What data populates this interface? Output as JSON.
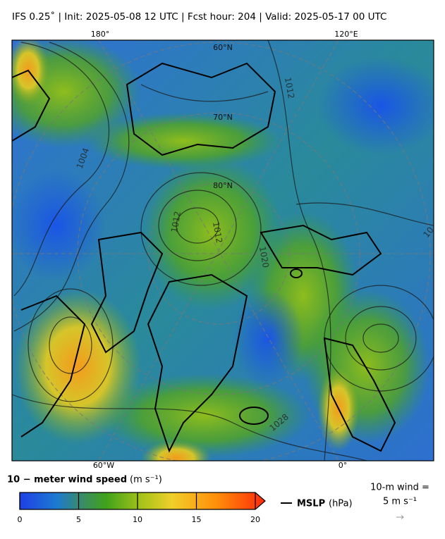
{
  "title": "IFS 0.25˚  |  Init: 2025-05-08 12 UTC  |  Fcst hour: 204  |  Valid: 2025-05-17 00 UTC",
  "map": {
    "lon_labels": [
      "180°",
      "120°E",
      "60°W",
      "0°"
    ],
    "lat_labels": [
      "60°N",
      "70°N",
      "80°N"
    ],
    "contour_labels": [
      "1004",
      "1012",
      "1012",
      "1012",
      "1020",
      "1028",
      "10"
    ]
  },
  "colorbar": {
    "label": "10 − meter wind speed",
    "unit": "(m s⁻¹)",
    "lim": [
      0,
      20
    ],
    "ticks": [
      0,
      5,
      10,
      15,
      20
    ]
  },
  "legend": {
    "mslp_label": "MSLP",
    "mslp_unit": "(hPa)",
    "wind_key_label": "10-m wind =",
    "wind_key_value": "5 m s⁻¹"
  }
}
